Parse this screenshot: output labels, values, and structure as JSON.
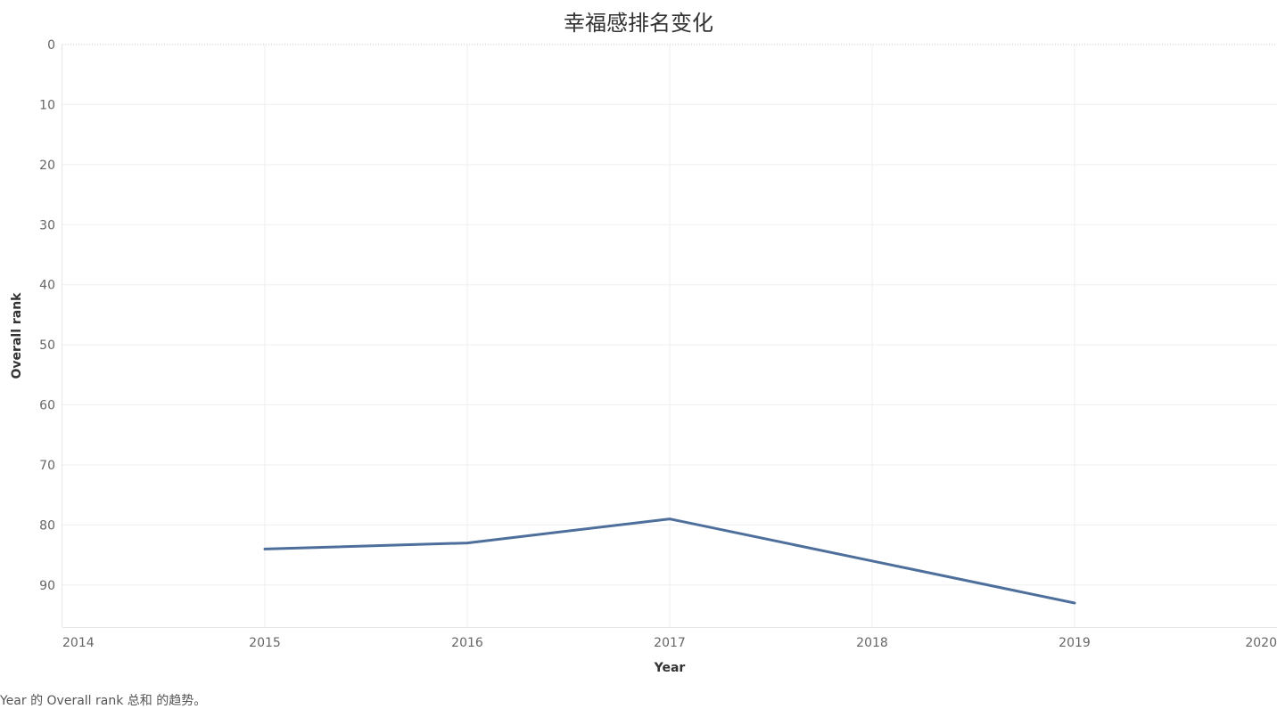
{
  "chart_data": {
    "type": "line",
    "title": "幸福感排名变化",
    "xlabel": "Year",
    "ylabel": "Overall rank",
    "x_ticks": [
      2014,
      2015,
      2016,
      2017,
      2018,
      2019,
      2020
    ],
    "y_ticks": [
      0,
      10,
      20,
      30,
      40,
      50,
      60,
      70,
      80,
      90
    ],
    "xlim": [
      2014,
      2020
    ],
    "ylim": [
      0,
      97
    ],
    "y_reversed": true,
    "grid": true,
    "series": [
      {
        "color": "#4e6f9c",
        "x": [
          2015,
          2016,
          2017,
          2018,
          2019
        ],
        "values": [
          84,
          83,
          79,
          86,
          93
        ]
      }
    ]
  },
  "caption": "Year 的 Overall rank 总和 的趋势。"
}
